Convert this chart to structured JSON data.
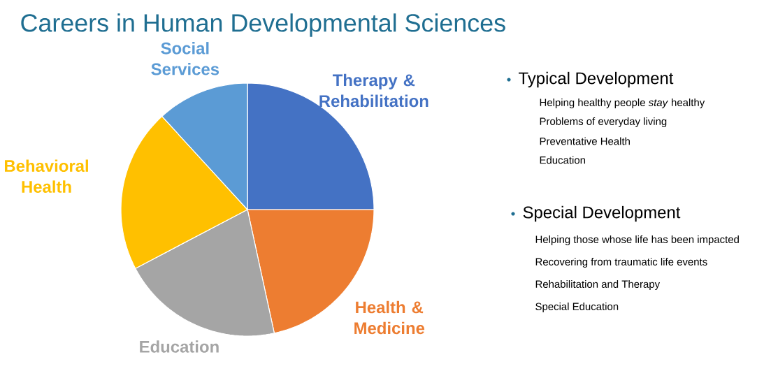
{
  "chart_data": {
    "type": "pie",
    "title": "Careers in Human Developmental Sciences",
    "categories": [
      "Therapy & Rehabilitation",
      "Health & Medicine",
      "Education",
      "Behavioral Health",
      "Social Services"
    ],
    "values": [
      25,
      21.6,
      20.7,
      20.9,
      11.8
    ],
    "colors": [
      "#4472c4",
      "#ed7d31",
      "#a5a5a5",
      "#ffc000",
      "#5b9bd5"
    ],
    "annotations": [
      "Typical Development",
      "Helping healthy people *stay* healthy",
      "Problems of everyday living",
      "Preventative Health",
      "Education",
      "Special Development",
      "Helping those whose life has been impacted",
      "Recovering from traumatic life events",
      "Rehabilitation and Therapy",
      "Special Education"
    ]
  }
}
